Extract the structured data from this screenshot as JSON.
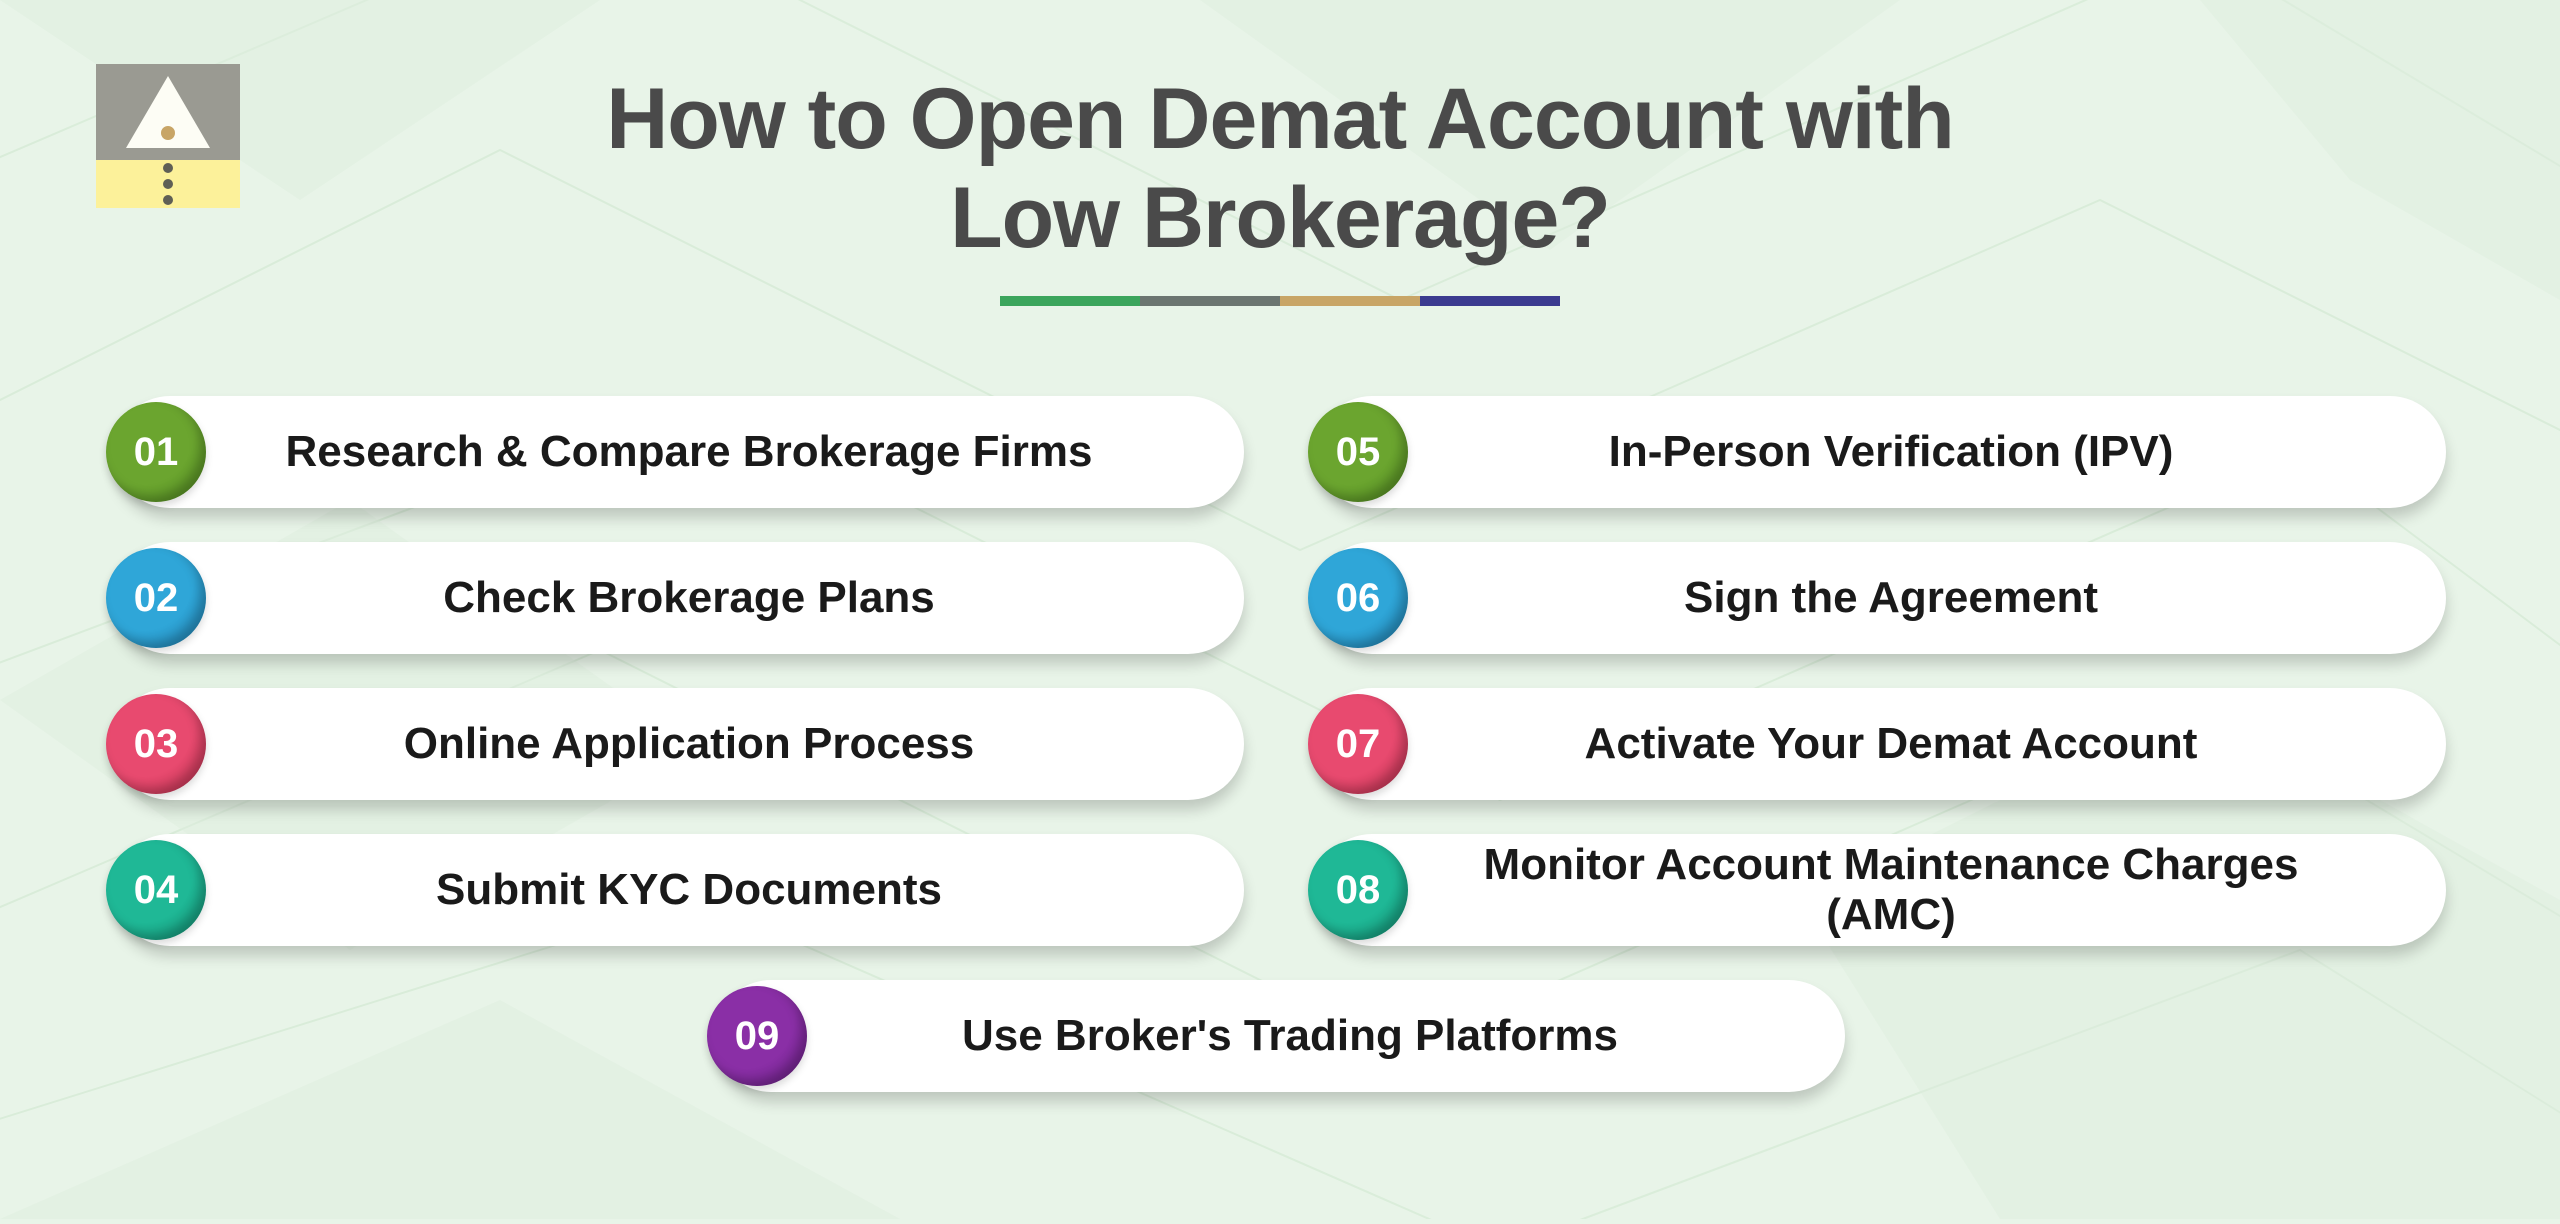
{
  "title_line1": "How to Open Demat Account with",
  "title_line2": "Low Brokerage?",
  "underline_colors": [
    "#3ba55c",
    "#6b7570",
    "#c8a566",
    "#3b3b8f"
  ],
  "background_color": "#e8f4e8",
  "steps_left": [
    {
      "num": "01",
      "label": "Research & Compare Brokerage Firms",
      "color": "#6ba52f",
      "shade": "#4f8a1f"
    },
    {
      "num": "02",
      "label": "Check Brokerage Plans",
      "color": "#2fa6d8",
      "shade": "#1f7fb0"
    },
    {
      "num": "03",
      "label": "Online Application Process",
      "color": "#e84a6f",
      "shade": "#c0304f"
    },
    {
      "num": "04",
      "label": "Submit KYC Documents",
      "color": "#1fb896",
      "shade": "#128f72"
    }
  ],
  "steps_right": [
    {
      "num": "05",
      "label": "In-Person Verification (IPV)",
      "color": "#6ba52f",
      "shade": "#4f8a1f"
    },
    {
      "num": "06",
      "label": "Sign the Agreement",
      "color": "#2fa6d8",
      "shade": "#1f7fb0"
    },
    {
      "num": "07",
      "label": "Activate Your Demat Account",
      "color": "#e84a6f",
      "shade": "#c0304f"
    },
    {
      "num": "08",
      "label": "Monitor Account Maintenance Charges (AMC)",
      "color": "#1fb896",
      "shade": "#128f72"
    }
  ],
  "step_center": {
    "num": "09",
    "label": "Use Broker's Trading Platforms",
    "color": "#8a2fa6",
    "shade": "#6a1f86"
  }
}
